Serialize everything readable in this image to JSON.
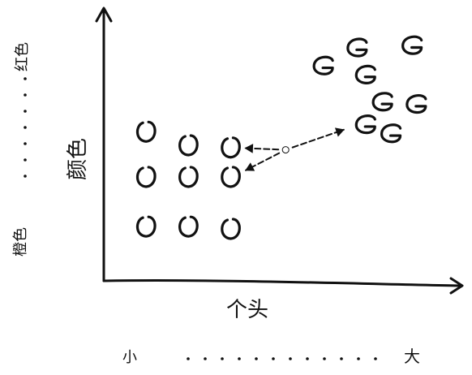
{
  "title": "",
  "axes": {
    "x": {
      "label": "个头",
      "low_label": "小",
      "high_label": "大"
    },
    "y": {
      "label": "颜色",
      "low_label": "橙色",
      "high_label": "红色"
    }
  },
  "legend": [],
  "groups": [
    {
      "marker": "O",
      "label": "",
      "description_visible": false,
      "points": [
        {
          "size": 1,
          "color": 6.6
        },
        {
          "size": 2,
          "color": 6.0
        },
        {
          "size": 3,
          "color": 5.9
        },
        {
          "size": 1,
          "color": 4.6
        },
        {
          "size": 2,
          "color": 4.6
        },
        {
          "size": 3,
          "color": 4.6
        },
        {
          "size": 1,
          "color": 2.4
        },
        {
          "size": 2,
          "color": 2.4
        },
        {
          "size": 3,
          "color": 2.3
        }
      ]
    },
    {
      "marker": "G",
      "label": "",
      "description_visible": false,
      "points": [
        {
          "size": 6.0,
          "color": 10.3
        },
        {
          "size": 7.3,
          "color": 10.4
        },
        {
          "size": 5.2,
          "color": 9.5
        },
        {
          "size": 6.2,
          "color": 9.1
        },
        {
          "size": 6.6,
          "color": 7.9
        },
        {
          "size": 7.4,
          "color": 7.8
        },
        {
          "size": 6.2,
          "color": 6.9
        },
        {
          "size": 6.8,
          "color": 6.5
        }
      ]
    }
  ],
  "query_point": {
    "size": 4.3,
    "color": 5.8
  },
  "arrows_to": [
    {
      "size": 3.0,
      "color": 5.9
    },
    {
      "size": 3.05,
      "color": 4.6
    },
    {
      "size": 6.0,
      "color": 6.9
    }
  ],
  "ranges": {
    "size": [
      0,
      8.4
    ],
    "color": [
      0,
      12
    ]
  },
  "colors": {
    "ink": "#111111",
    "background": "#ffffff"
  }
}
